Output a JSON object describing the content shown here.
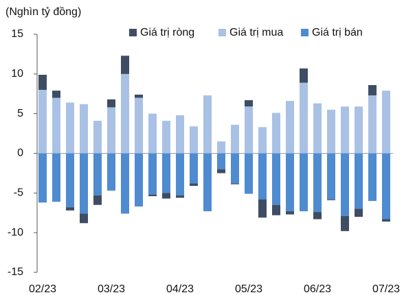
{
  "chart_data": {
    "type": "stacked_bar",
    "ylabel": "(Nghìn tỷ đồng)",
    "categories": [
      "02/23",
      null,
      null,
      null,
      null,
      "03/23",
      null,
      null,
      null,
      null,
      "04/23",
      null,
      null,
      null,
      null,
      "05/23",
      null,
      null,
      null,
      null,
      "06/23",
      null,
      null,
      null,
      null,
      "07/23"
    ],
    "series": [
      {
        "name": "Giá trị ròng",
        "color": "#3e4d63",
        "values": [
          1.9,
          0.9,
          -0.4,
          -1.2,
          -1.2,
          1.0,
          2.3,
          0.4,
          -0.2,
          -0.7,
          -0.3,
          -0.3,
          0,
          -0.5,
          -0.1,
          0.8,
          -2.3,
          -1.3,
          -0.4,
          1.8,
          -0.9,
          -0.1,
          -1.9,
          -1.0,
          1.3,
          -0.3
        ]
      },
      {
        "name": "Giá trị mua",
        "color": "#a9c1e4",
        "values": [
          8.0,
          7.0,
          6.4,
          6.2,
          4.1,
          5.8,
          10.0,
          7.0,
          5.0,
          4.1,
          4.8,
          3.4,
          7.3,
          1.5,
          3.6,
          5.9,
          3.3,
          5.1,
          6.6,
          8.9,
          6.3,
          5.5,
          5.9,
          5.9,
          7.3,
          7.9
        ]
      },
      {
        "name": "Giá trị bán",
        "color": "#4f8bd0",
        "values": [
          -6.2,
          -6.1,
          -6.8,
          -7.6,
          -5.3,
          -4.7,
          -7.6,
          -6.7,
          -5.2,
          -5.0,
          -5.3,
          -3.8,
          -7.3,
          -2.0,
          -3.8,
          -5.1,
          -5.8,
          -6.5,
          -7.3,
          -7.3,
          -7.4,
          -5.8,
          -7.9,
          -7.0,
          -6.0,
          -8.3
        ]
      }
    ],
    "ylim": [
      -15,
      15
    ],
    "yticks": [
      -15,
      -10,
      -5,
      0,
      5,
      10,
      15
    ],
    "legend": "top-right"
  }
}
